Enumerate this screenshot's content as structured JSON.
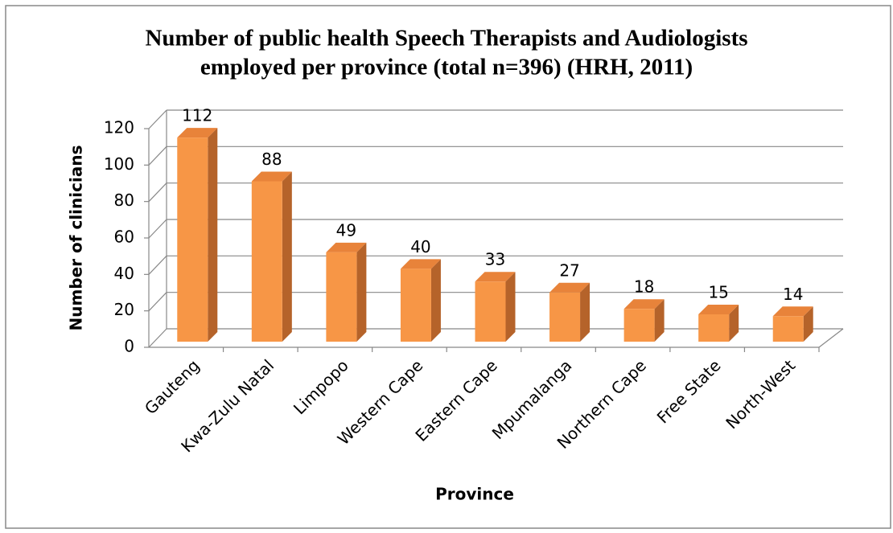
{
  "chart_data": {
    "type": "bar3d",
    "title": [
      "Number of public health Speech Therapists and Audiologists",
      "employed per province (total n=396) (HRH, 2011)"
    ],
    "x_label": "Province",
    "y_label": "Number of clinicians",
    "categories": [
      "Gauteng",
      "Kwa-Zulu Natal",
      "Limpopo",
      "Western Cape",
      "Eastern Cape",
      "Mpumalanga",
      "Northern Cape",
      "Free State",
      "North-West"
    ],
    "values": [
      112,
      88,
      49,
      40,
      33,
      27,
      18,
      15,
      14
    ],
    "color": "#f79646",
    "ylim": [
      0,
      120
    ],
    "yticks": [
      0,
      20,
      40,
      60,
      80,
      100,
      120
    ],
    "grid": true
  }
}
